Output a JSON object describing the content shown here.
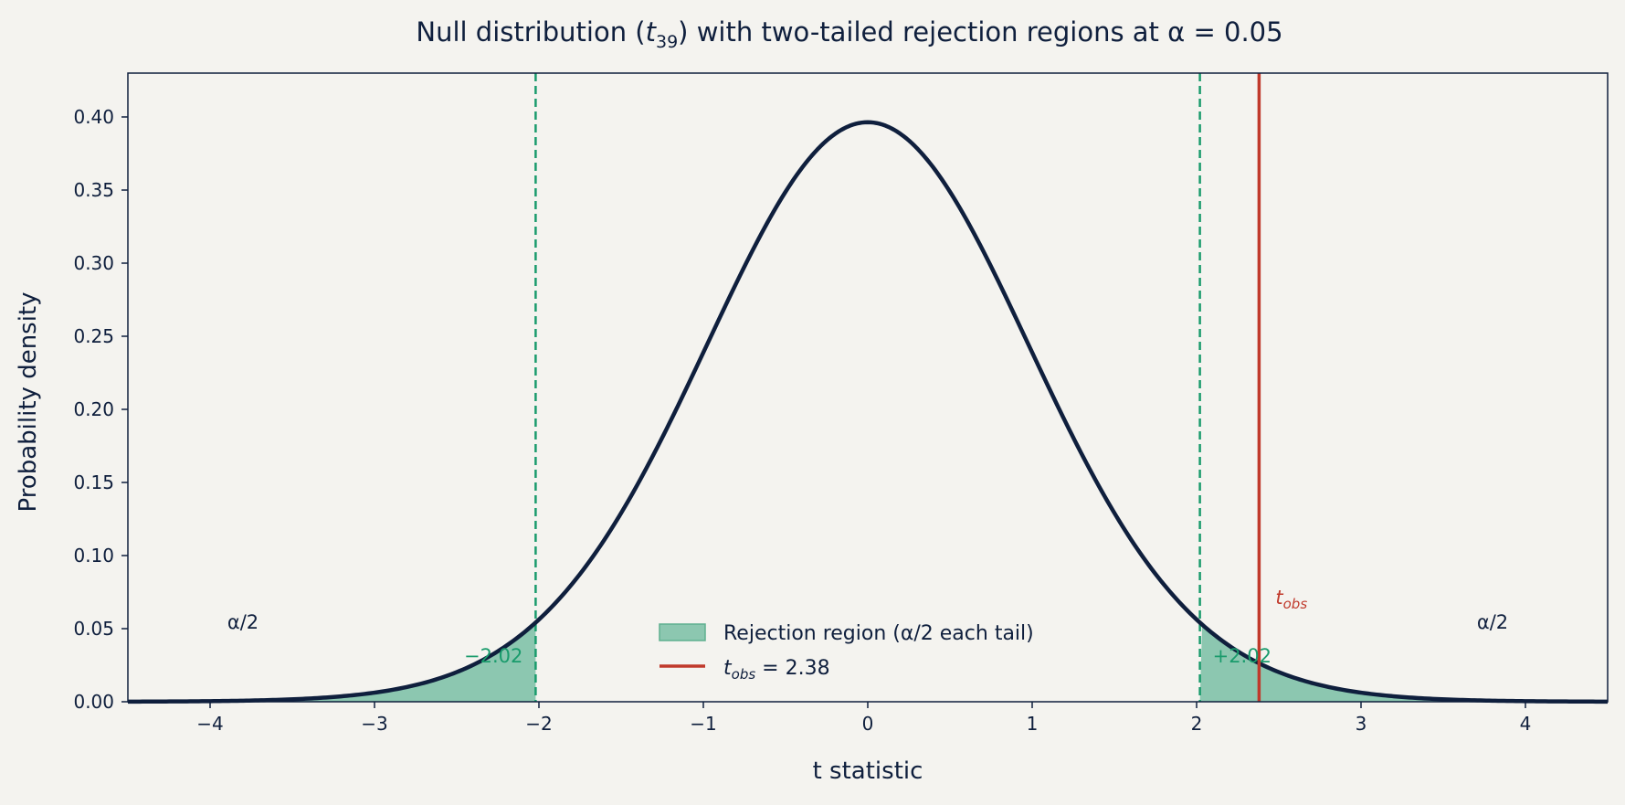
{
  "chart_data": {
    "type": "line",
    "title_parts": {
      "pre": "Null distribution (",
      "t": "t",
      "sub": "39",
      "post": ") with two-tailed rejection regions at α = 0.05"
    },
    "xlabel": "t statistic",
    "ylabel": "Probability density",
    "xlim": [
      -4.5,
      4.5
    ],
    "ylim": [
      0,
      0.43
    ],
    "x_ticks": [
      -4,
      -3,
      -2,
      -1,
      0,
      1,
      2,
      3,
      4
    ],
    "x_tick_labels": [
      "−4",
      "−3",
      "−2",
      "−1",
      "0",
      "1",
      "2",
      "3",
      "4"
    ],
    "y_ticks": [
      0,
      0.05,
      0.1,
      0.15,
      0.2,
      0.25,
      0.3,
      0.35,
      0.4
    ],
    "y_tick_labels": [
      "0.00",
      "0.05",
      "0.10",
      "0.15",
      "0.20",
      "0.25",
      "0.30",
      "0.35",
      "0.40"
    ],
    "distribution": {
      "family": "t",
      "df": 39
    },
    "critical_values": [
      -2.02,
      2.02
    ],
    "critical_labels": [
      "−2.02",
      "+2.02"
    ],
    "t_obs": 2.38,
    "t_obs_annotation": {
      "t": "t",
      "sub": "obs"
    },
    "tail_labels": [
      "α/2",
      "α/2"
    ],
    "legend": {
      "placement": "bottom-center",
      "items": [
        {
          "kind": "patch",
          "label": "Rejection region (α/2 each tail)"
        },
        {
          "kind": "line",
          "t": "t",
          "sub": "obs",
          "label_suffix": " = 2.38"
        }
      ]
    },
    "grid": false,
    "colors": {
      "background": "#f4f3ef",
      "curve": "#0f1f3d",
      "rejection_fill": "#8cc7b0",
      "critical_line": "#1a9b6c",
      "t_obs_line": "#c0392b"
    }
  }
}
